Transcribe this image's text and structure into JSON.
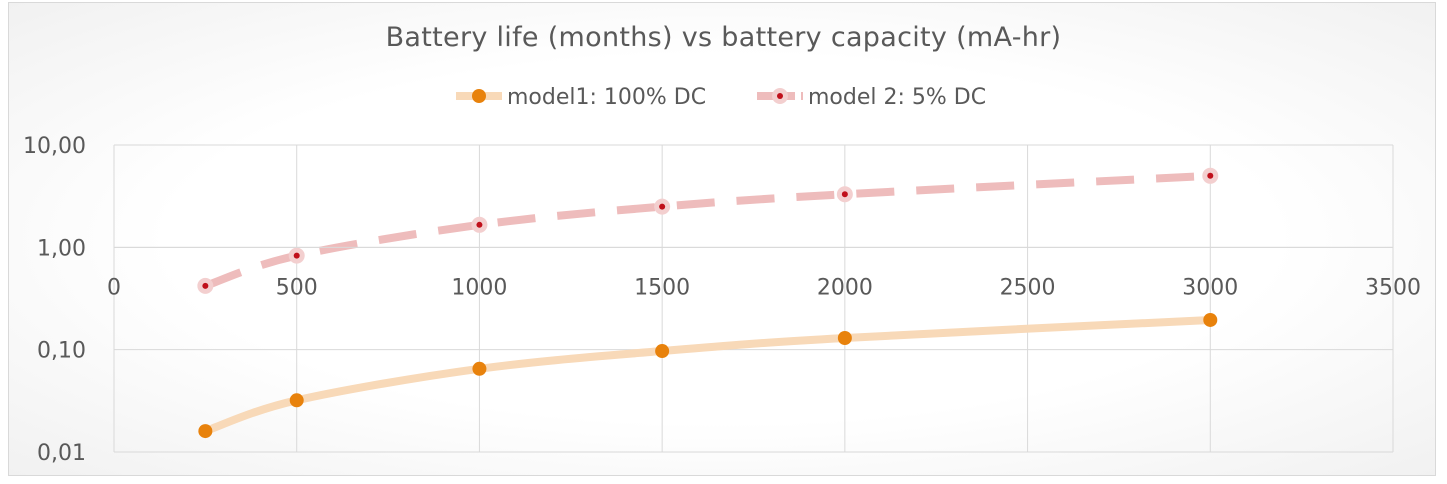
{
  "chart_data": {
    "type": "line",
    "title": "Battery life (months) vs battery capacity (mA-hr)",
    "xlabel": "",
    "ylabel": "",
    "y_scale": "log",
    "xlim": [
      0,
      3500
    ],
    "ylim": [
      0.01,
      10
    ],
    "x_ticks": [
      0,
      500,
      1000,
      1500,
      2000,
      2500,
      3000,
      3500
    ],
    "x_tick_labels": [
      "0",
      "500",
      "1000",
      "1500",
      "2000",
      "2500",
      "3000",
      "3500"
    ],
    "y_ticks": [
      10,
      1,
      0.1,
      0.01
    ],
    "y_tick_labels": [
      "10,00",
      "1,00",
      "0,10",
      "0,01"
    ],
    "x_axis_crosses_y": 1,
    "grid": true,
    "legend_position": "top",
    "series": [
      {
        "name": "model1: 100% DC",
        "x": [
          250,
          500,
          1000,
          1500,
          2000,
          3000
        ],
        "values": [
          0.016,
          0.032,
          0.065,
          0.097,
          0.13,
          0.195
        ],
        "line_color": "#f8d9b8",
        "marker_color": "#e8820c",
        "line_style": "solid-smooth"
      },
      {
        "name": "model 2: 5% DC",
        "x": [
          250,
          500,
          1000,
          1500,
          2000,
          3000
        ],
        "values": [
          0.42,
          0.83,
          1.66,
          2.5,
          3.3,
          5.0
        ],
        "line_color": "#eebcbc",
        "marker_color": "#c0101b",
        "line_style": "dashed"
      }
    ]
  }
}
